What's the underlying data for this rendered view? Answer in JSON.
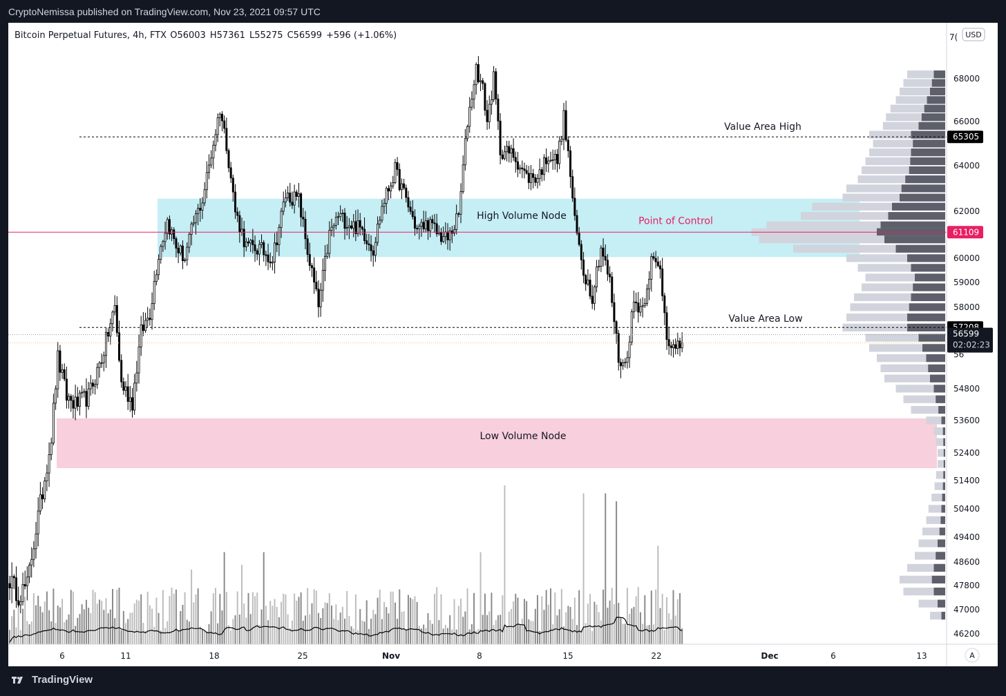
{
  "header": {
    "published": "CryptoNemissa published on TradingView.com, Nov 23, 2021 09:57 UTC"
  },
  "footer": {
    "brand": "TradingView"
  },
  "colors": {
    "vah_val_line": "#000000",
    "poc": "#e91e63",
    "hvn_fill": "#c5eef5",
    "lvn_fill": "#f8cfdc",
    "candle": "#000000",
    "volume": "#9e9e9e",
    "volume_ma": "#000000",
    "profile_dark": "#5d606b",
    "profile_light": "#d1d4dc"
  },
  "chart_data": {
    "type": "candlestick",
    "symbol_line": {
      "symbol": "Bitcoin Perpetual Futures, 4h, FTX",
      "open": "O56003",
      "high": "H57361",
      "low": "L55275",
      "close": "C56599",
      "change": "+596 (+1.06%)"
    },
    "currency": "USD",
    "x_ticks": [
      "6",
      "11",
      "18",
      "25",
      "Nov",
      "8",
      "15",
      "22",
      "Dec",
      "6",
      "13"
    ],
    "y_ticks": [
      68000,
      66000,
      64000,
      62000,
      60000,
      59000,
      58000,
      54800,
      53600,
      52400,
      51400,
      50400,
      49400,
      48600,
      47800,
      47000,
      46200
    ],
    "y_top_tick_partial": "7(",
    "price_labels": {
      "vah": "65305",
      "poc": "61109",
      "val": "57208",
      "last": "56599",
      "countdown": "02:02:23",
      "partial_below_last": "56"
    },
    "levels": {
      "value_area_high": 65305,
      "point_of_control": 61109,
      "value_area_low": 57208,
      "last_price": 56599
    },
    "annotations": {
      "vah": "Value Area High",
      "val": "Value Area Low",
      "poc": "Point of Control",
      "hvn": "High Volume Node",
      "lvn": "Low Volume Node"
    },
    "zones": {
      "high_volume_node": [
        60050,
        62550
      ],
      "low_volume_node": [
        51850,
        53680
      ]
    },
    "waypoints": [
      [
        0,
        48000
      ],
      [
        4,
        47500
      ],
      [
        8,
        47800
      ],
      [
        10,
        48800
      ],
      [
        15,
        51000
      ],
      [
        19,
        53000
      ],
      [
        22,
        56000
      ],
      [
        26,
        54500
      ],
      [
        30,
        54200
      ],
      [
        36,
        54500
      ],
      [
        42,
        56000
      ],
      [
        48,
        58000
      ],
      [
        51,
        55000
      ],
      [
        56,
        54300
      ],
      [
        60,
        57000
      ],
      [
        64,
        57800
      ],
      [
        68,
        60200
      ],
      [
        72,
        61600
      ],
      [
        76,
        60500
      ],
      [
        80,
        60000
      ],
      [
        84,
        61500
      ],
      [
        88,
        62500
      ],
      [
        92,
        64500
      ],
      [
        96,
        66600
      ],
      [
        99,
        65000
      ],
      [
        103,
        62000
      ],
      [
        108,
        60500
      ],
      [
        114,
        60400
      ],
      [
        120,
        60000
      ],
      [
        126,
        62700
      ],
      [
        132,
        62500
      ],
      [
        136,
        60300
      ],
      [
        141,
        58000
      ],
      [
        146,
        61000
      ],
      [
        150,
        61800
      ],
      [
        155,
        61500
      ],
      [
        161,
        61200
      ],
      [
        166,
        60400
      ],
      [
        170,
        62200
      ],
      [
        176,
        63800
      ],
      [
        181,
        62500
      ],
      [
        186,
        61200
      ],
      [
        191,
        61500
      ],
      [
        196,
        61000
      ],
      [
        200,
        60800
      ],
      [
        205,
        61800
      ],
      [
        209,
        66000
      ],
      [
        213,
        68500
      ],
      [
        216,
        67500
      ],
      [
        218,
        66000
      ],
      [
        221,
        68000
      ],
      [
        224,
        64700
      ],
      [
        230,
        64500
      ],
      [
        236,
        63500
      ],
      [
        241,
        63500
      ],
      [
        246,
        64500
      ],
      [
        250,
        64200
      ],
      [
        253,
        66200
      ],
      [
        256,
        63600
      ],
      [
        258,
        61500
      ],
      [
        262,
        59500
      ],
      [
        266,
        58500
      ],
      [
        270,
        60500
      ],
      [
        274,
        59000
      ],
      [
        278,
        56000
      ],
      [
        281,
        55700
      ],
      [
        285,
        58200
      ],
      [
        289,
        58000
      ],
      [
        293,
        59900
      ],
      [
        297,
        59500
      ],
      [
        300,
        57000
      ],
      [
        304,
        56200
      ],
      [
        307,
        56599
      ]
    ],
    "volume_spikes": [
      [
        98,
        0.58
      ],
      [
        116,
        0.58
      ],
      [
        215,
        0.58
      ],
      [
        226,
        1.0
      ],
      [
        262,
        0.95
      ],
      [
        272,
        0.95
      ],
      [
        277,
        0.9
      ],
      [
        296,
        0.62
      ],
      [
        106,
        0.5
      ],
      [
        83,
        0.47
      ]
    ],
    "profile": [
      [
        68200,
        0.3,
        0.5
      ],
      [
        67800,
        0.35,
        0.55
      ],
      [
        67400,
        0.4,
        0.6
      ],
      [
        67000,
        0.48,
        0.65
      ],
      [
        66600,
        0.55,
        0.72
      ],
      [
        66200,
        0.62,
        0.78
      ],
      [
        65800,
        0.7,
        0.82
      ],
      [
        65400,
        0.9,
        1.0
      ],
      [
        65000,
        0.85,
        0.95
      ],
      [
        64600,
        0.9,
        1.0
      ],
      [
        64200,
        0.92,
        1.05
      ],
      [
        63800,
        0.95,
        1.1
      ],
      [
        63400,
        1.05,
        1.15
      ],
      [
        63000,
        1.15,
        1.3
      ],
      [
        62600,
        1.2,
        1.35
      ],
      [
        62200,
        1.4,
        1.75
      ],
      [
        61800,
        1.5,
        1.9
      ],
      [
        61400,
        1.7,
        2.35
      ],
      [
        61109,
        1.8,
        2.55
      ],
      [
        60800,
        1.6,
        2.45
      ],
      [
        60400,
        1.3,
        2.0
      ],
      [
        60000,
        1.0,
        1.3
      ],
      [
        59600,
        0.9,
        1.15
      ],
      [
        59200,
        0.8,
        1.05
      ],
      [
        58800,
        0.85,
        1.1
      ],
      [
        58400,
        0.9,
        1.2
      ],
      [
        58000,
        0.95,
        1.25
      ],
      [
        57600,
        1.0,
        1.3
      ],
      [
        57200,
        1.0,
        1.35
      ],
      [
        56800,
        0.7,
        1.05
      ],
      [
        56400,
        0.6,
        1.0
      ],
      [
        56000,
        0.5,
        0.9
      ],
      [
        55600,
        0.45,
        0.85
      ],
      [
        55200,
        0.4,
        0.8
      ],
      [
        54800,
        0.3,
        0.65
      ],
      [
        54400,
        0.25,
        0.55
      ],
      [
        54000,
        0.18,
        0.45
      ],
      [
        53600,
        0.1,
        0.25
      ],
      [
        53200,
        0.06,
        0.15
      ],
      [
        52800,
        0.05,
        0.12
      ],
      [
        52400,
        0.04,
        0.1
      ],
      [
        52000,
        0.04,
        0.1
      ],
      [
        51600,
        0.05,
        0.12
      ],
      [
        51200,
        0.06,
        0.14
      ],
      [
        50800,
        0.08,
        0.18
      ],
      [
        50400,
        0.1,
        0.22
      ],
      [
        50000,
        0.12,
        0.25
      ],
      [
        49600,
        0.15,
        0.3
      ],
      [
        49200,
        0.2,
        0.35
      ],
      [
        48800,
        0.25,
        0.4
      ],
      [
        48400,
        0.3,
        0.5
      ],
      [
        48000,
        0.35,
        0.6
      ],
      [
        47600,
        0.3,
        0.55
      ],
      [
        47200,
        0.2,
        0.35
      ],
      [
        46800,
        0.1,
        0.2
      ]
    ]
  }
}
